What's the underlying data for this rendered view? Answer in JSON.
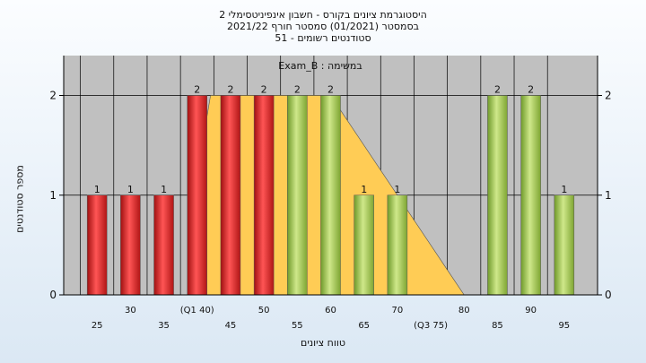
{
  "titles": [
    "היסטוגרמת ציונים בקורס - חשבון אינפיניטסימלי 2",
    "בסמסטר  (01/2021)  סמסטר חורף  2021/22",
    "סטודנטים רשומים - 51"
  ],
  "legend_label": "במשימה : Exam_B",
  "chart_data": {
    "type": "bar",
    "ylabel": "מספר סטודנטים",
    "xlabel": "טווח ציונים",
    "ylim": [
      0,
      2.4
    ],
    "y_ticks": [
      0,
      1,
      2
    ],
    "x_tick_labels": [
      {
        "x": 25,
        "label": "25",
        "row": 2
      },
      {
        "x": 30,
        "label": "30",
        "row": 1
      },
      {
        "x": 35,
        "label": "35",
        "row": 2
      },
      {
        "x": 40,
        "label": "(Q1 40)",
        "row": 1
      },
      {
        "x": 45,
        "label": "45",
        "row": 2
      },
      {
        "x": 50,
        "label": "50",
        "row": 1
      },
      {
        "x": 55,
        "label": "55",
        "row": 2
      },
      {
        "x": 60,
        "label": "60",
        "row": 1
      },
      {
        "x": 65,
        "label": "65",
        "row": 2
      },
      {
        "x": 70,
        "label": "70",
        "row": 1
      },
      {
        "x": 75,
        "label": "(Q3 75)",
        "row": 2
      },
      {
        "x": 80,
        "label": "80",
        "row": 1
      },
      {
        "x": 85,
        "label": "85",
        "row": 2
      },
      {
        "x": 90,
        "label": "90",
        "row": 1
      },
      {
        "x": 95,
        "label": "95",
        "row": 2
      }
    ],
    "bars": [
      {
        "x": 25,
        "value": 1,
        "color": "red"
      },
      {
        "x": 30,
        "value": 1,
        "color": "red"
      },
      {
        "x": 35,
        "value": 1,
        "color": "red"
      },
      {
        "x": 40,
        "value": 2,
        "color": "red"
      },
      {
        "x": 45,
        "value": 2,
        "color": "red"
      },
      {
        "x": 50,
        "value": 2,
        "color": "red"
      },
      {
        "x": 55,
        "value": 2,
        "color": "green"
      },
      {
        "x": 60,
        "value": 2,
        "color": "green"
      },
      {
        "x": 65,
        "value": 1,
        "color": "green"
      },
      {
        "x": 70,
        "value": 1,
        "color": "green"
      },
      {
        "x": 85,
        "value": 2,
        "color": "green"
      },
      {
        "x": 90,
        "value": 2,
        "color": "green"
      },
      {
        "x": 95,
        "value": 1,
        "color": "green"
      }
    ],
    "box_area": [
      {
        "x": 40,
        "y": 1.2
      },
      {
        "x": 42,
        "y": 2
      },
      {
        "x": 60,
        "y": 2
      },
      {
        "x": 80,
        "y": 0
      }
    ],
    "colors": {
      "plot_bg": "#c0c0c0",
      "box_fill": "#ffcc55",
      "red": "#e02020",
      "green": "#9cc246"
    }
  }
}
